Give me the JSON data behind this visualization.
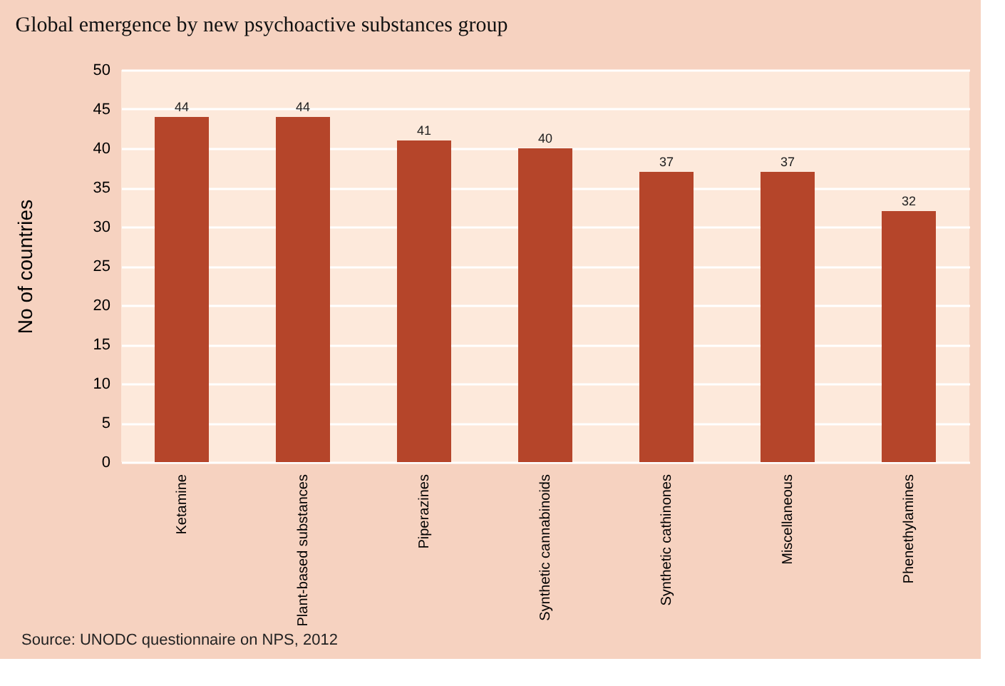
{
  "chart_data": {
    "type": "bar",
    "title": "Global emergence by new psychoactive substances group",
    "ylabel": "No of countries",
    "categories": [
      "Ketamine",
      "Plant-based substances",
      "Piperazines",
      "Synthetic cannabinoids",
      "Synthetic cathinones",
      "Miscellaneous",
      "Phenethylamines"
    ],
    "values": [
      44,
      44,
      41,
      40,
      37,
      37,
      32
    ],
    "color": "#b5452a",
    "data_labels": true,
    "ylim": [
      0,
      50
    ],
    "yticks": [
      0,
      5,
      10,
      15,
      20,
      25,
      30,
      35,
      40,
      45,
      50
    ],
    "grid": "y",
    "annotations": [
      "Source: UNODC questionnaire on NPS, 2012"
    ]
  }
}
